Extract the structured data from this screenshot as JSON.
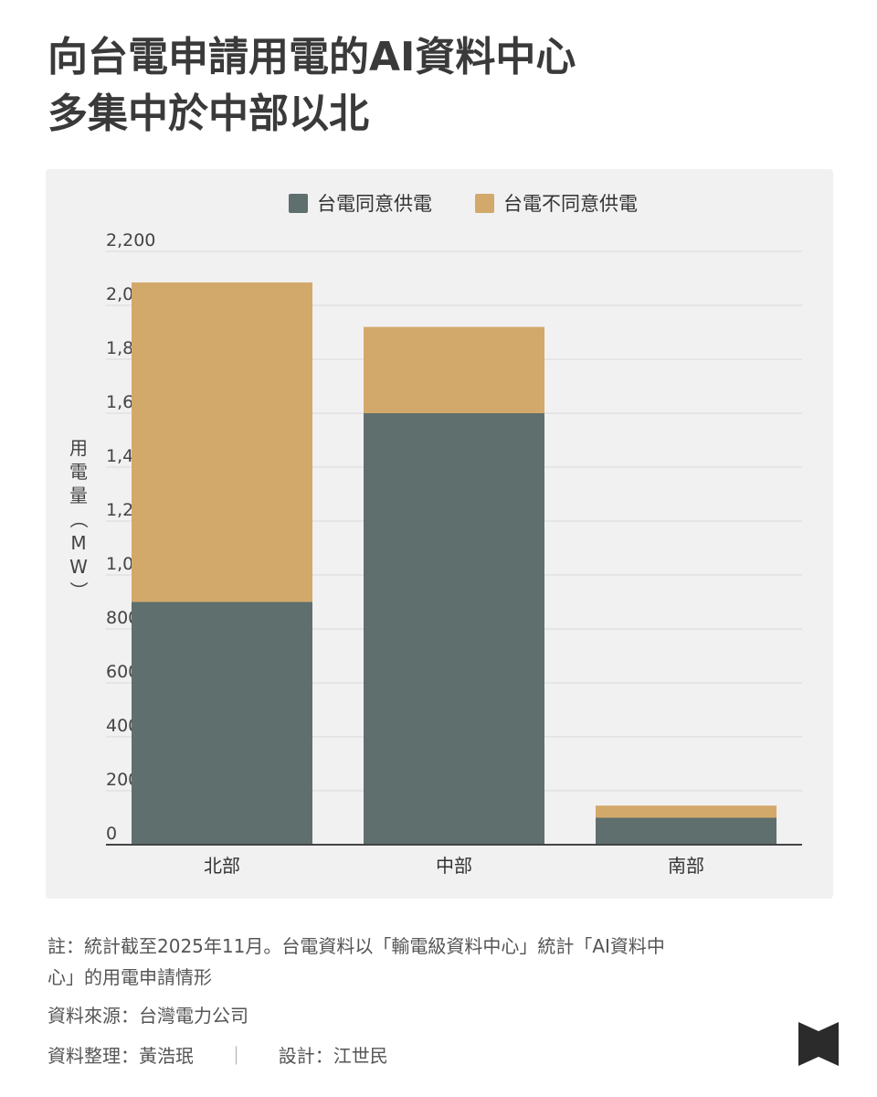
{
  "title_lines": [
    "向台電申請用電的AI資料中心",
    "多集中於中部以北"
  ],
  "colors": {
    "agree": "#5f6f6e",
    "disagree": "#d3a96b",
    "panel": "#f1f1f1",
    "grid": "#d9d9d9",
    "axis": "#444444"
  },
  "chart_data": {
    "type": "bar",
    "stacked": true,
    "categories": [
      "北部",
      "中部",
      "南部"
    ],
    "series": [
      {
        "name": "台電同意供電",
        "values": [
          900,
          1600,
          100
        ]
      },
      {
        "name": "台電不同意供電",
        "values": [
          1185,
          320,
          45
        ]
      }
    ],
    "ylabel": "用電量（MW）",
    "ylim": [
      0,
      2200
    ],
    "yticks": [
      0,
      200,
      400,
      600,
      800,
      1000,
      1200,
      1400,
      1600,
      1800,
      2000,
      2200
    ],
    "ytick_labels": [
      "0",
      "200",
      "400",
      "600",
      "800",
      "1,000",
      "1,200",
      "1,400",
      "1,600",
      "1,800",
      "2,000",
      "2,200"
    ],
    "grid": true,
    "legend_position": "top-center"
  },
  "notes": {
    "note": [
      "註：統計截至2025年11月。台電資料以「輸電級資料中心」統計「AI資料中",
      "心」的用電申請情形"
    ],
    "source": "資料來源：台灣電力公司",
    "data_credit": "資料整理：黃浩珉",
    "separator": "｜",
    "design_credit": "設計：江世民"
  },
  "logo_icon": "bowtie-logo-icon"
}
